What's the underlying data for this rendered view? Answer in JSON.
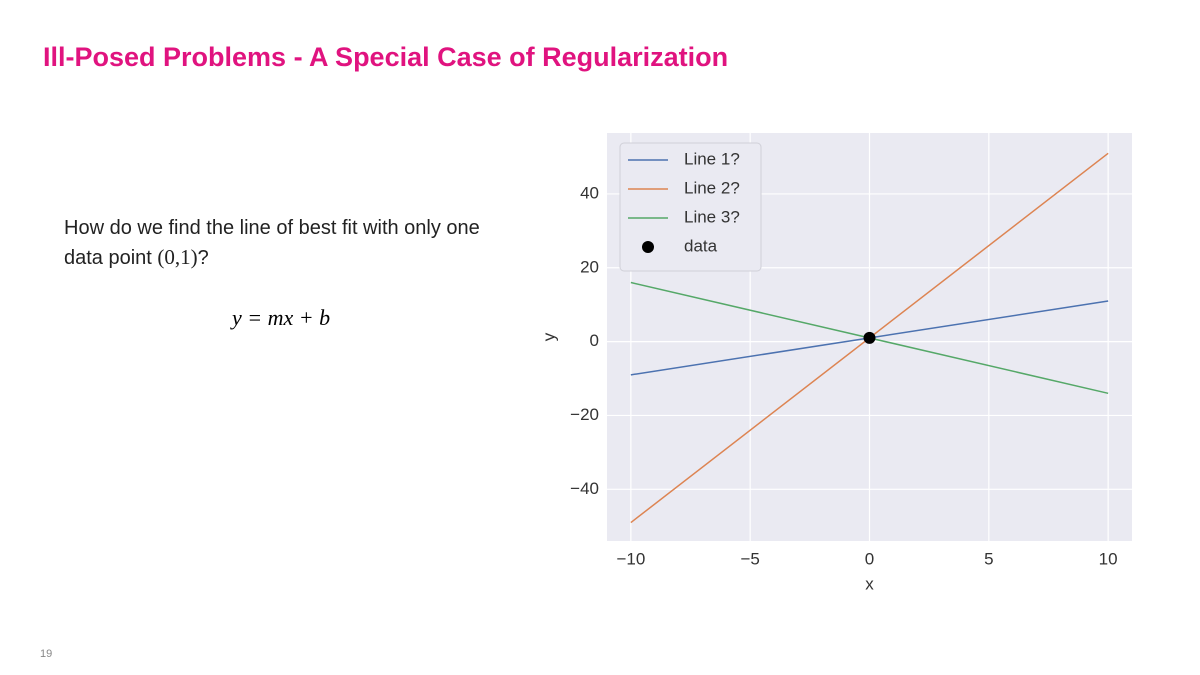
{
  "slide": {
    "title": "Ill-Posed Problems - A Special Case of Regularization",
    "body": {
      "text": "How do we find the line of best fit with only one data point",
      "point": "(0,1)",
      "end": "?"
    },
    "formula": "y = mx + b",
    "page_number": "19"
  },
  "chart_data": {
    "type": "line",
    "x_label": "x",
    "y_label": "y",
    "xlim": [
      -11,
      11
    ],
    "ylim": [
      -54,
      56.5
    ],
    "xticks": [
      {
        "value": -10,
        "label": "−10"
      },
      {
        "value": -5,
        "label": "−5"
      },
      0,
      5,
      10
    ],
    "yticks": [
      {
        "value": -40,
        "label": "−40"
      },
      {
        "value": -20,
        "label": "−20"
      },
      0,
      20,
      40
    ],
    "grid": true,
    "legend": "upper left",
    "series": [
      {
        "name": "Line 1?",
        "color": "#4c72b0",
        "x": [
          -10,
          10
        ],
        "values": [
          -9,
          11
        ]
      },
      {
        "name": "Line 2?",
        "color": "#dd8452",
        "x": [
          -10,
          10
        ],
        "values": [
          -49,
          51
        ]
      },
      {
        "name": "Line 3?",
        "color": "#55a868",
        "x": [
          -10,
          10
        ],
        "values": [
          16,
          -14
        ]
      },
      {
        "name": "data",
        "type": "scatter",
        "color": "#000000",
        "x": [
          0
        ],
        "values": [
          1
        ]
      }
    ]
  }
}
